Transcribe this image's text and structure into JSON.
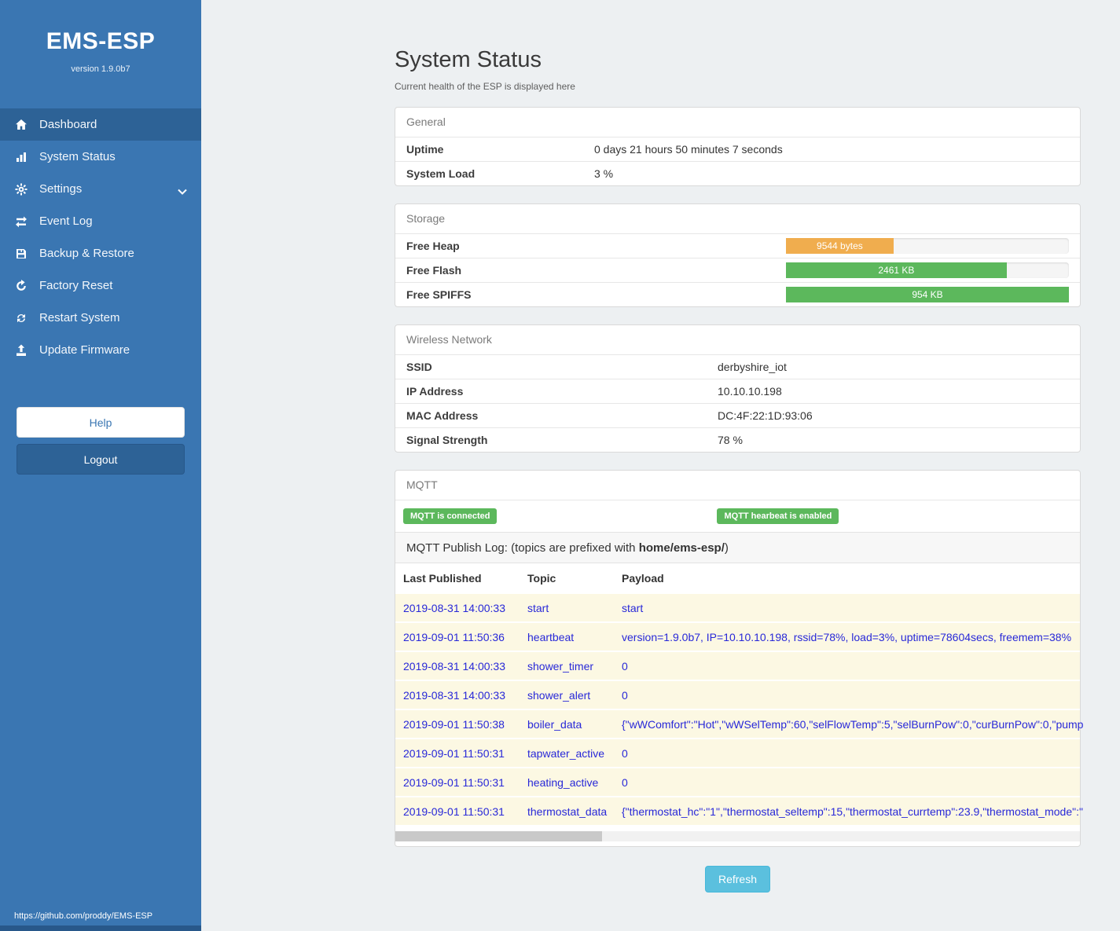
{
  "sidebar": {
    "title": "EMS-ESP",
    "version": "version 1.9.0b7",
    "items": [
      {
        "label": "Dashboard",
        "icon": "home-icon",
        "active": true
      },
      {
        "label": "System Status",
        "icon": "chart-icon",
        "active": false
      },
      {
        "label": "Settings",
        "icon": "gear-icon",
        "active": false,
        "chevron": "chevron-down-icon"
      },
      {
        "label": "Event Log",
        "icon": "exchange-icon",
        "active": false
      },
      {
        "label": "Backup & Restore",
        "icon": "save-icon",
        "active": false
      },
      {
        "label": "Factory Reset",
        "icon": "reset-icon",
        "active": false
      },
      {
        "label": "Restart System",
        "icon": "restart-icon",
        "active": false
      },
      {
        "label": "Update Firmware",
        "icon": "upload-icon",
        "active": false
      }
    ],
    "help_label": "Help",
    "logout_label": "Logout",
    "footer_link": "https://github.com/proddy/EMS-ESP"
  },
  "main": {
    "title": "System Status",
    "subtitle": "Current health of the ESP is displayed here",
    "general": {
      "header": "General",
      "rows": [
        {
          "label": "Uptime",
          "value": "0 days 21 hours 50 minutes 7 seconds"
        },
        {
          "label": "System Load",
          "value": "3 %"
        }
      ]
    },
    "storage": {
      "header": "Storage",
      "rows": [
        {
          "label": "Free Heap",
          "bar_label": "9544 bytes",
          "percent": 38,
          "color": "#f0ad4e"
        },
        {
          "label": "Free Flash",
          "bar_label": "2461 KB",
          "percent": 78,
          "color": "#5cb85c"
        },
        {
          "label": "Free SPIFFS",
          "bar_label": "954 KB",
          "percent": 100,
          "color": "#5cb85c"
        }
      ]
    },
    "wireless": {
      "header": "Wireless Network",
      "rows": [
        {
          "label": "SSID",
          "value": "derbyshire_iot"
        },
        {
          "label": "IP Address",
          "value": "10.10.10.198"
        },
        {
          "label": "MAC Address",
          "value": "DC:4F:22:1D:93:06"
        },
        {
          "label": "Signal Strength",
          "value": "78 %"
        }
      ]
    },
    "mqtt": {
      "header": "MQTT",
      "badges": [
        "MQTT is connected",
        "MQTT hearbeat is enabled"
      ],
      "publog_prefix": "MQTT Publish Log: (topics are prefixed with ",
      "publog_bold": "home/ems-esp/",
      "publog_suffix": ")",
      "table": {
        "headers": [
          "Last Published",
          "Topic",
          "Payload"
        ],
        "rows": [
          {
            "published": "2019-08-31 14:00:33",
            "topic": "start",
            "payload": "start"
          },
          {
            "published": "2019-09-01 11:50:36",
            "topic": "heartbeat",
            "payload": "version=1.9.0b7, IP=10.10.10.198, rssid=78%, load=3%, uptime=78604secs, freemem=38%"
          },
          {
            "published": "2019-08-31 14:00:33",
            "topic": "shower_timer",
            "payload": "0"
          },
          {
            "published": "2019-08-31 14:00:33",
            "topic": "shower_alert",
            "payload": "0"
          },
          {
            "published": "2019-09-01 11:50:38",
            "topic": "boiler_data",
            "payload": "{\"wWComfort\":\"Hot\",\"wWSelTemp\":60,\"selFlowTemp\":5,\"selBurnPow\":0,\"curBurnPow\":0,\"pump"
          },
          {
            "published": "2019-09-01 11:50:31",
            "topic": "tapwater_active",
            "payload": "0"
          },
          {
            "published": "2019-09-01 11:50:31",
            "topic": "heating_active",
            "payload": "0"
          },
          {
            "published": "2019-09-01 11:50:31",
            "topic": "thermostat_data",
            "payload": "{\"thermostat_hc\":\"1\",\"thermostat_seltemp\":15,\"thermostat_currtemp\":23.9,\"thermostat_mode\":\""
          }
        ]
      }
    },
    "refresh_label": "Refresh"
  }
}
